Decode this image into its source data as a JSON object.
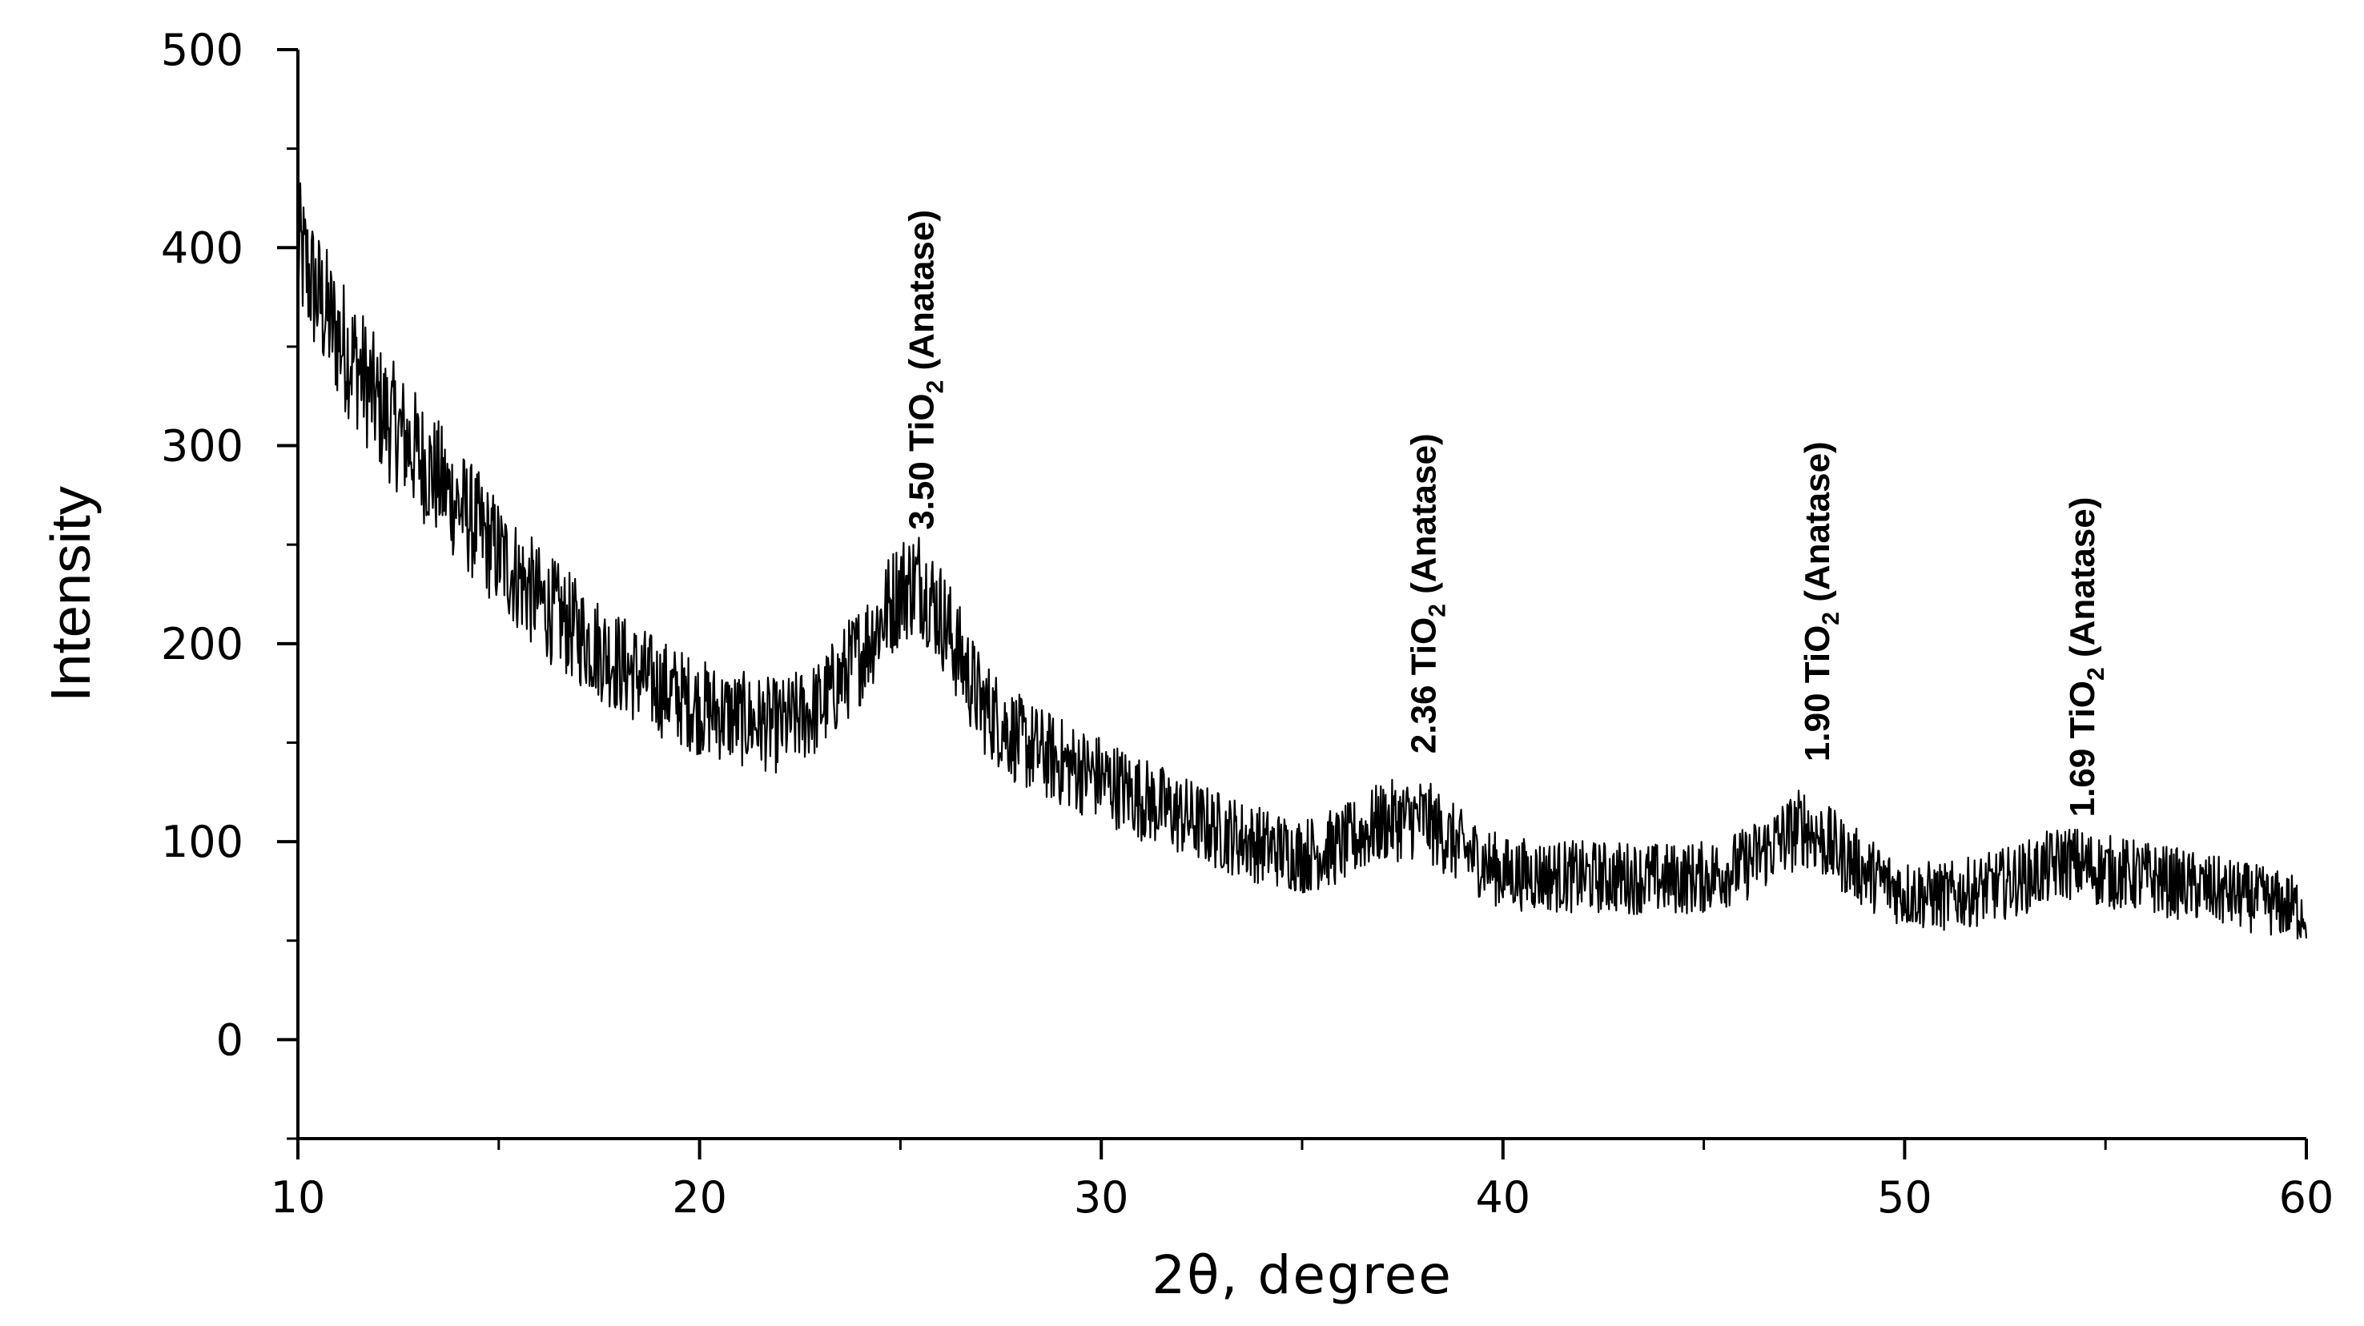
{
  "chart_data": {
    "type": "line",
    "title": "",
    "xlabel": "2θ, degree",
    "ylabel": "Intensity",
    "xlim": [
      10,
      60
    ],
    "ylim": [
      -50,
      500
    ],
    "x_ticks": [
      10,
      20,
      30,
      40,
      50,
      60
    ],
    "y_ticks": [
      0,
      100,
      200,
      300,
      400,
      500
    ],
    "x_tick_labels": [
      "10",
      "20",
      "30",
      "40",
      "50",
      "60"
    ],
    "y_tick_labels": [
      "0",
      "100",
      "200",
      "300",
      "400",
      "500"
    ],
    "grid": false,
    "legend": "none",
    "line_color": "#000000",
    "series": [
      {
        "x": [
          10,
          10.5,
          11,
          11.5,
          12,
          13,
          14,
          15,
          16,
          17,
          18,
          19,
          20,
          21,
          22,
          23,
          24,
          25,
          25.5,
          26,
          27,
          28,
          29,
          30,
          31,
          32,
          33,
          34,
          35,
          36,
          37,
          38,
          39,
          40,
          41,
          42,
          43,
          44,
          45,
          46,
          47,
          47.5,
          48,
          49,
          50,
          51,
          52,
          53,
          54,
          55,
          56,
          57,
          58,
          59,
          60
        ],
        "y": [
          400,
          375,
          355,
          340,
          320,
          295,
          270,
          245,
          222,
          205,
          190,
          178,
          168,
          162,
          158,
          168,
          195,
          228,
          232,
          215,
          170,
          150,
          140,
          132,
          122,
          113,
          105,
          98,
          93,
          98,
          110,
          112,
          96,
          84,
          83,
          82,
          82,
          81,
          82,
          88,
          102,
          108,
          100,
          85,
          74,
          72,
          76,
          82,
          90,
          85,
          82,
          78,
          74,
          70,
          65
        ]
      }
    ],
    "annotations": [
      {
        "x": 25.5,
        "y": 255,
        "value": "3.50",
        "compound": "TiO",
        "subscript": "2",
        "phase": "(Anatase)"
      },
      {
        "x": 38,
        "y": 142,
        "value": "2.36",
        "compound": "TiO",
        "subscript": "2",
        "phase": "(Anatase)"
      },
      {
        "x": 47.8,
        "y": 138,
        "value": "1.90",
        "compound": "TiO",
        "subscript": "2",
        "phase": "(Anatase)"
      },
      {
        "x": 54.4,
        "y": 110,
        "value": "1.69",
        "compound": "TiO",
        "subscript": "2",
        "phase": "(Anatase)"
      }
    ]
  }
}
